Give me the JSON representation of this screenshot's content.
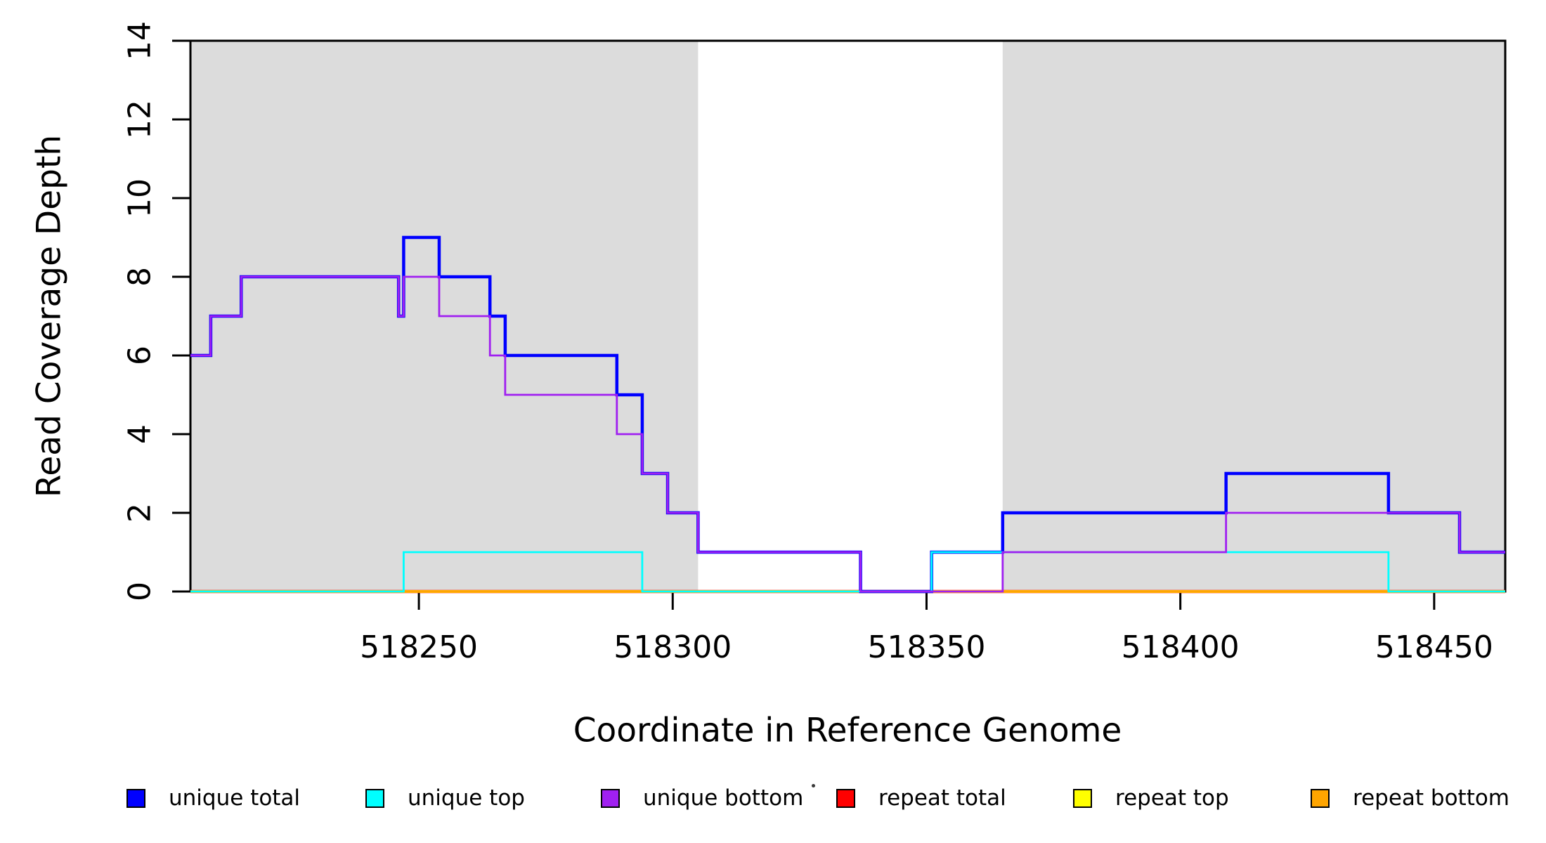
{
  "chart_data": {
    "type": "line",
    "subtype": "step-function-coverage",
    "xlabel": "Coordinate in Reference Genome",
    "ylabel": "Read Coverage Depth",
    "xlim": [
      518205,
      518464
    ],
    "ylim": [
      0,
      14
    ],
    "x_ticks": [
      518250,
      518300,
      518350,
      518400,
      518450
    ],
    "y_ticks": [
      0,
      2,
      4,
      6,
      8,
      10,
      12,
      14
    ],
    "grid": "off",
    "shading_color": "#DCDCDC",
    "repeat_regions": [
      [
        518205,
        518305
      ],
      [
        518365,
        518464
      ]
    ],
    "series": [
      {
        "name": "repeat total",
        "color": "#FF0000",
        "width": 4.5,
        "steps": [
          [
            518205,
            0
          ],
          [
            518464,
            0
          ]
        ]
      },
      {
        "name": "repeat top",
        "color": "#FFFF00",
        "width": 3.8,
        "steps": [
          [
            518205,
            0
          ],
          [
            518464,
            0
          ]
        ]
      },
      {
        "name": "repeat bottom",
        "color": "#FFA500",
        "width": 3.2,
        "steps": [
          [
            518205,
            0
          ],
          [
            518464,
            0
          ]
        ]
      },
      {
        "name": "unique total",
        "color": "#0000FF",
        "width": 4.5,
        "steps": [
          [
            518205,
            6
          ],
          [
            518209,
            7
          ],
          [
            518215,
            8
          ],
          [
            518246,
            7
          ],
          [
            518247,
            9
          ],
          [
            518254,
            8
          ],
          [
            518264,
            7
          ],
          [
            518267,
            6
          ],
          [
            518289,
            5
          ],
          [
            518294,
            3
          ],
          [
            518299,
            2
          ],
          [
            518305,
            1
          ],
          [
            518337,
            0
          ],
          [
            518351,
            1
          ],
          [
            518365,
            2
          ],
          [
            518409,
            3
          ],
          [
            518441,
            2
          ],
          [
            518455,
            1
          ],
          [
            518464,
            1
          ]
        ]
      },
      {
        "name": "unique top",
        "color": "#00FFFF",
        "width": 2.8,
        "steps": [
          [
            518205,
            0
          ],
          [
            518247,
            1
          ],
          [
            518294,
            0
          ],
          [
            518351,
            1
          ],
          [
            518441,
            0
          ],
          [
            518464,
            0
          ]
        ]
      },
      {
        "name": "unique bottom",
        "color": "#A020F0",
        "width": 2.8,
        "steps": [
          [
            518205,
            6
          ],
          [
            518209,
            7
          ],
          [
            518215,
            8
          ],
          [
            518246,
            7
          ],
          [
            518247,
            8
          ],
          [
            518254,
            7
          ],
          [
            518264,
            6
          ],
          [
            518267,
            5
          ],
          [
            518289,
            4
          ],
          [
            518294,
            3
          ],
          [
            518299,
            2
          ],
          [
            518305,
            1
          ],
          [
            518337,
            0
          ],
          [
            518365,
            1
          ],
          [
            518409,
            2
          ],
          [
            518455,
            1
          ],
          [
            518464,
            1
          ]
        ]
      }
    ],
    "legend_position": "bottom",
    "legend": [
      {
        "label": "unique total",
        "color": "#0000FF"
      },
      {
        "label": "unique top",
        "color": "#00FFFF"
      },
      {
        "label": "unique bottom",
        "color": "#A020F0"
      },
      {
        "label": "repeat total",
        "color": "#FF0000"
      },
      {
        "label": "repeat top",
        "color": "#FFFF00"
      },
      {
        "label": "repeat bottom",
        "color": "#FFA500"
      }
    ]
  }
}
